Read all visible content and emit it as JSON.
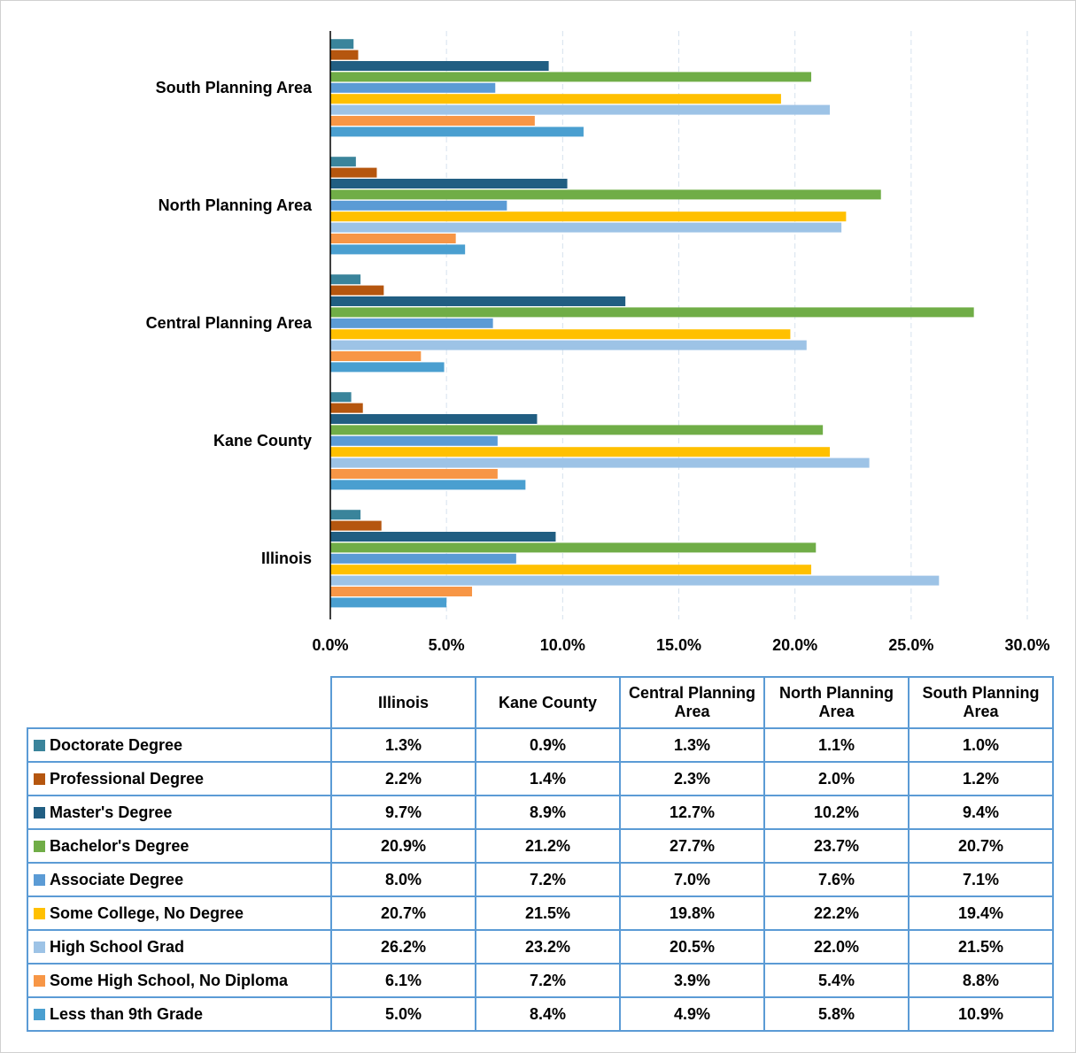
{
  "chart_data": {
    "type": "bar",
    "orientation": "horizontal",
    "categories": [
      "Illinois",
      "Kane County",
      "Central Planning Area",
      "North Planning Area",
      "South Planning Area"
    ],
    "series": [
      {
        "name": "Doctorate Degree",
        "color": "#3a849b",
        "values": [
          1.3,
          0.9,
          1.3,
          1.1,
          1.0
        ],
        "value_labels": [
          "1.3%",
          "0.9%",
          "1.3%",
          "1.1%",
          "1.0%"
        ]
      },
      {
        "name": "Professional Degree",
        "color": "#b5560f",
        "values": [
          2.2,
          1.4,
          2.3,
          2.0,
          1.2
        ],
        "value_labels": [
          "2.2%",
          "1.4%",
          "2.3%",
          "2.0%",
          "1.2%"
        ]
      },
      {
        "name": "Master's Degree",
        "color": "#215e82",
        "values": [
          9.7,
          8.9,
          12.7,
          10.2,
          9.4
        ],
        "value_labels": [
          "9.7%",
          "8.9%",
          "12.7%",
          "10.2%",
          "9.4%"
        ]
      },
      {
        "name": "Bachelor's Degree",
        "color": "#70ad47",
        "values": [
          20.9,
          21.2,
          27.7,
          23.7,
          20.7
        ],
        "value_labels": [
          "20.9%",
          "21.2%",
          "27.7%",
          "23.7%",
          "20.7%"
        ]
      },
      {
        "name": "Associate Degree",
        "color": "#5b9bd5",
        "values": [
          8.0,
          7.2,
          7.0,
          7.6,
          7.1
        ],
        "value_labels": [
          "8.0%",
          "7.2%",
          "7.0%",
          "7.6%",
          "7.1%"
        ]
      },
      {
        "name": "Some College, No Degree",
        "color": "#ffc000",
        "values": [
          20.7,
          21.5,
          19.8,
          22.2,
          19.4
        ],
        "value_labels": [
          "20.7%",
          "21.5%",
          "19.8%",
          "22.2%",
          "19.4%"
        ]
      },
      {
        "name": "High School Grad",
        "color": "#9dc3e6",
        "values": [
          26.2,
          23.2,
          20.5,
          22.0,
          21.5
        ],
        "value_labels": [
          "26.2%",
          "23.2%",
          "20.5%",
          "22.0%",
          "21.5%"
        ]
      },
      {
        "name": "Some High School, No Diploma",
        "color": "#f79646",
        "values": [
          6.1,
          7.2,
          3.9,
          5.4,
          8.8
        ],
        "value_labels": [
          "6.1%",
          "7.2%",
          "3.9%",
          "5.4%",
          "8.8%"
        ]
      },
      {
        "name": "Less than 9th Grade",
        "color": "#4a9fd0",
        "values": [
          5.0,
          8.4,
          4.9,
          5.8,
          10.9
        ],
        "value_labels": [
          "5.0%",
          "8.4%",
          "4.9%",
          "5.8%",
          "10.9%"
        ]
      }
    ],
    "xlim": [
      0,
      30
    ],
    "xticks": [
      {
        "value": 0,
        "label": "0.0%"
      },
      {
        "value": 5,
        "label": "5.0%"
      },
      {
        "value": 10,
        "label": "10.0%"
      },
      {
        "value": 15,
        "label": "15.0%"
      },
      {
        "value": 20,
        "label": "20.0%"
      },
      {
        "value": 25,
        "label": "25.0%"
      },
      {
        "value": 30,
        "label": "30.0%"
      }
    ],
    "grid": true
  }
}
